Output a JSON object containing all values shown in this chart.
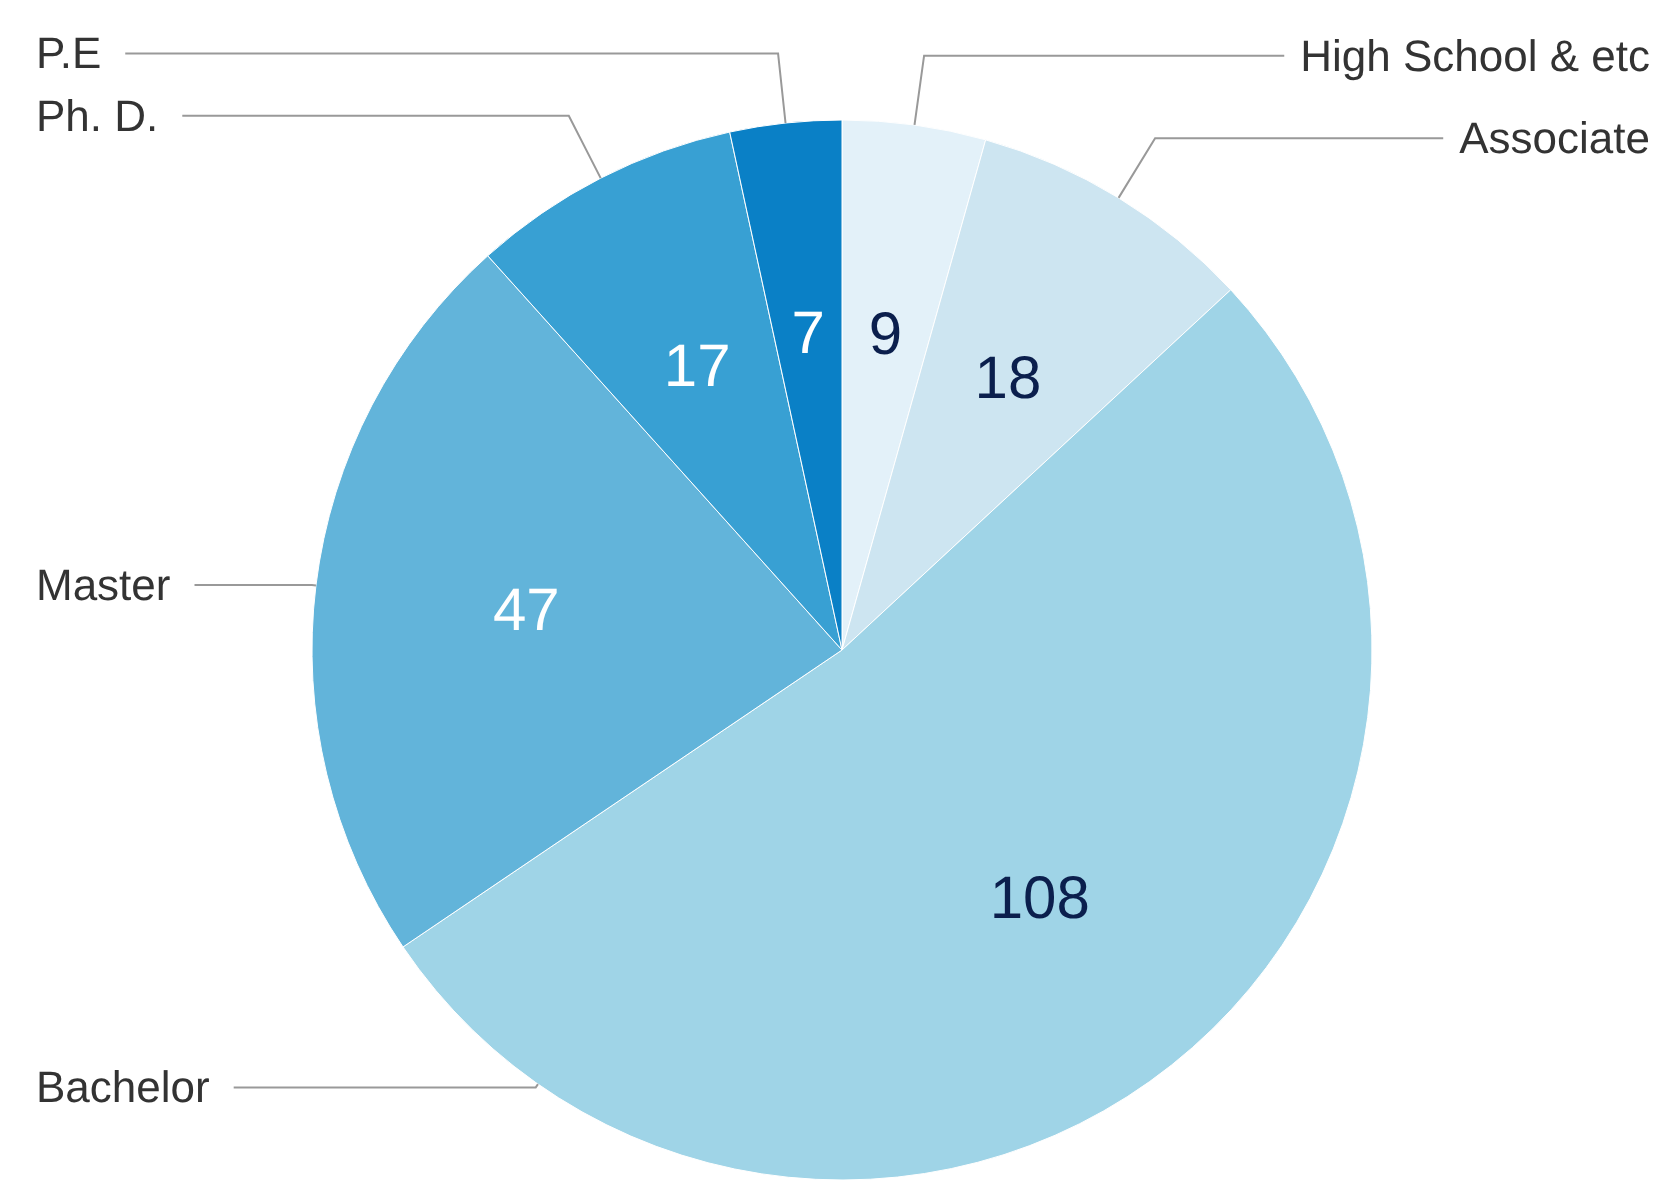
{
  "chart_data": {
    "type": "pie",
    "categories": [
      "High School & etc",
      "Associate",
      "Bachelor",
      "Master",
      "Ph. D.",
      "P.E"
    ],
    "values": [
      9,
      18,
      108,
      47,
      17,
      7
    ],
    "colors": [
      "#e3f1f9",
      "#cde5f1",
      "#9fd4e7",
      "#62b4da",
      "#38a0d3",
      "#0a80c6"
    ],
    "data_labels": true
  }
}
